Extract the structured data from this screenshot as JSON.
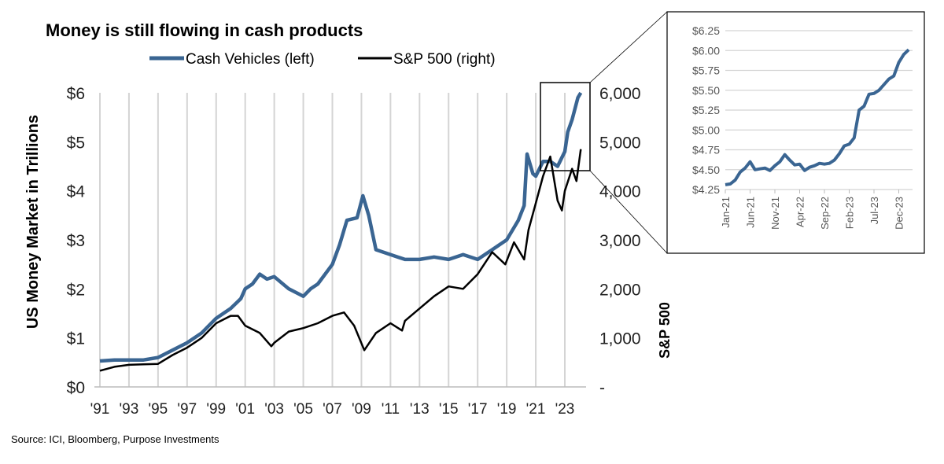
{
  "chart_data": [
    {
      "type": "line",
      "title": "Money is still flowing in cash products",
      "ylabel": "US Money Market in Trillions",
      "y2label": "S&P 500",
      "xlabel": "",
      "x_tick_labels": [
        "'91",
        "'93",
        "'95",
        "'97",
        "'99",
        "'01",
        "'03",
        "'05",
        "'07",
        "'09",
        "'11",
        "'13",
        "'15",
        "'17",
        "'19",
        "'21",
        "'23"
      ],
      "y_tick_labels": [
        "$0",
        "$1",
        "$2",
        "$3",
        "$4",
        "$5",
        "$6"
      ],
      "y2_tick_labels": [
        "-",
        "1,000",
        "2,000",
        "3,000",
        "4,000",
        "5,000",
        "6,000"
      ],
      "xlim": [
        1991,
        2024.3
      ],
      "ylim": [
        0,
        6
      ],
      "y2lim": [
        0,
        6000
      ],
      "grid": "vertical",
      "legend": "top",
      "series": [
        {
          "name": "Cash Vehicles (left)",
          "axis": "left",
          "color": "#3a6592",
          "x": [
            1991,
            1992,
            1993,
            1994,
            1995,
            1996,
            1997,
            1998,
            1999,
            2000,
            2000.7,
            2001,
            2001.5,
            2002,
            2002.5,
            2003,
            2004,
            2005,
            2005.5,
            2006,
            2007,
            2007.5,
            2008,
            2008.7,
            2009.1,
            2009.5,
            2010,
            2011,
            2012,
            2013,
            2014,
            2015,
            2016,
            2017,
            2018,
            2019,
            2019.8,
            2020.2,
            2020.4,
            2020.8,
            2021,
            2021.5,
            2022,
            2022.5,
            2023,
            2023.2,
            2023.5,
            2023.9,
            2024.1
          ],
          "y": [
            0.53,
            0.55,
            0.55,
            0.55,
            0.6,
            0.75,
            0.9,
            1.1,
            1.4,
            1.6,
            1.8,
            2.0,
            2.1,
            2.3,
            2.2,
            2.25,
            2.0,
            1.85,
            2.0,
            2.1,
            2.5,
            2.9,
            3.4,
            3.45,
            3.9,
            3.5,
            2.8,
            2.7,
            2.6,
            2.6,
            2.65,
            2.6,
            2.7,
            2.6,
            2.8,
            3.0,
            3.4,
            3.7,
            4.75,
            4.35,
            4.3,
            4.6,
            4.6,
            4.5,
            4.8,
            5.2,
            5.45,
            5.9,
            6.0
          ]
        },
        {
          "name": "S&P 500 (right)",
          "axis": "right",
          "color": "#000000",
          "x": [
            1991,
            1992,
            1993,
            1994,
            1995,
            1996,
            1997,
            1998,
            1999,
            2000,
            2000.5,
            2001,
            2002,
            2002.8,
            2003,
            2004,
            2005,
            2006,
            2007,
            2007.8,
            2008.5,
            2009.2,
            2010,
            2011,
            2011.8,
            2012,
            2013,
            2014,
            2015,
            2016,
            2017,
            2018,
            2018.9,
            2019.5,
            2020.2,
            2020.5,
            2021,
            2021.5,
            2022,
            2022.5,
            2022.8,
            2023,
            2023.5,
            2023.8,
            2024.1
          ],
          "y": [
            330,
            410,
            450,
            460,
            470,
            650,
            800,
            1000,
            1300,
            1450,
            1450,
            1250,
            1100,
            830,
            900,
            1130,
            1200,
            1300,
            1450,
            1520,
            1250,
            750,
            1100,
            1300,
            1150,
            1350,
            1600,
            1850,
            2050,
            2000,
            2300,
            2750,
            2500,
            2950,
            2600,
            3200,
            3750,
            4300,
            4700,
            3800,
            3600,
            4000,
            4450,
            4200,
            4850
          ]
        }
      ]
    },
    {
      "type": "line",
      "title": "",
      "x_tick_labels": [
        "Jan-21",
        "Jun-21",
        "Nov-21",
        "Apr-22",
        "Sep-22",
        "Feb-23",
        "Jul-23",
        "Dec-23"
      ],
      "y_tick_labels": [
        "$4.25",
        "$4.50",
        "$4.75",
        "$5.00",
        "$5.25",
        "$5.50",
        "$5.75",
        "$6.00",
        "$6.25"
      ],
      "ylim": [
        4.25,
        6.25
      ],
      "grid": "horizontal",
      "series": [
        {
          "name": "Cash Vehicles",
          "color": "#3a6592",
          "x": [
            "2021-01",
            "2021-02",
            "2021-03",
            "2021-04",
            "2021-05",
            "2021-06",
            "2021-07",
            "2021-08",
            "2021-09",
            "2021-10",
            "2021-11",
            "2021-12",
            "2022-01",
            "2022-02",
            "2022-03",
            "2022-04",
            "2022-05",
            "2022-06",
            "2022-07",
            "2022-08",
            "2022-09",
            "2022-10",
            "2022-11",
            "2022-12",
            "2023-01",
            "2023-02",
            "2023-03",
            "2023-04",
            "2023-05",
            "2023-06",
            "2023-07",
            "2023-08",
            "2023-09",
            "2023-10",
            "2023-11",
            "2023-12",
            "2024-01",
            "2024-02"
          ],
          "y": [
            4.31,
            4.32,
            4.37,
            4.47,
            4.52,
            4.6,
            4.5,
            4.51,
            4.52,
            4.49,
            4.55,
            4.6,
            4.69,
            4.62,
            4.56,
            4.57,
            4.49,
            4.53,
            4.55,
            4.58,
            4.57,
            4.58,
            4.62,
            4.7,
            4.8,
            4.82,
            4.9,
            5.25,
            5.3,
            5.45,
            5.46,
            5.5,
            5.57,
            5.64,
            5.68,
            5.85,
            5.95,
            6.01
          ]
        }
      ]
    }
  ],
  "source": "Source: ICI, Bloomberg, Purpose Investments"
}
